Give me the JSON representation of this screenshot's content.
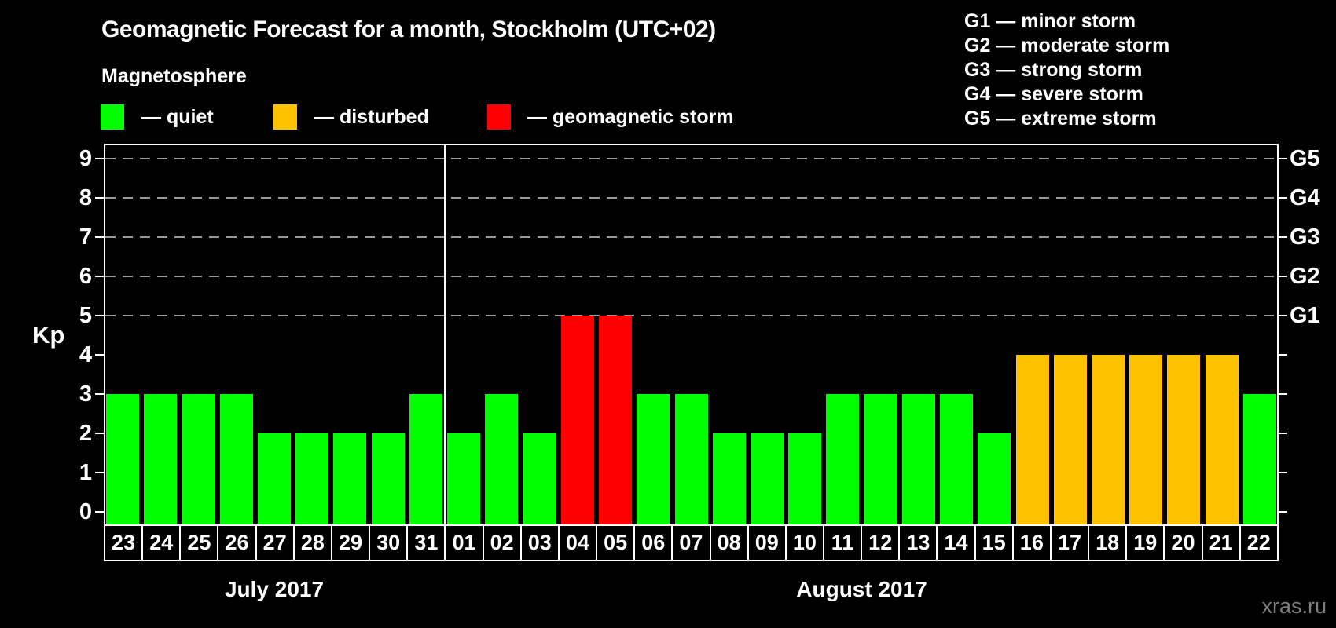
{
  "page": {
    "title": "Geomagnetic Forecast for a month, Stockholm (UTC+02)",
    "subtitle": "Magnetosphere",
    "watermark": "xras.ru"
  },
  "legend": {
    "items": [
      {
        "key": "quiet",
        "label": "— quiet",
        "color": "#00ff00"
      },
      {
        "key": "disturbed",
        "label": "— disturbed",
        "color": "#ffc200"
      },
      {
        "key": "storm",
        "label": "— geomagnetic storm",
        "color": "#ff0000"
      }
    ]
  },
  "storm_scale": {
    "items": [
      {
        "label": "G1 — minor storm"
      },
      {
        "label": "G2 — moderate storm"
      },
      {
        "label": "G3 — strong storm"
      },
      {
        "label": "G4 — severe storm"
      },
      {
        "label": "G5 — extreme storm"
      }
    ]
  },
  "chart_data": {
    "type": "bar",
    "title": "Geomagnetic Forecast for a month, Stockholm (UTC+02)",
    "ylabel": "Kp",
    "ylim": [
      0,
      9
    ],
    "y_ticks": [
      0,
      1,
      2,
      3,
      4,
      5,
      6,
      7,
      8,
      9
    ],
    "grid": "dashed horizontal gridlines only at Kp 5-9 (G-storm levels)",
    "gridlines_at": [
      5,
      6,
      7,
      8,
      9
    ],
    "right_axis_labels": [
      {
        "kp": 5,
        "label": "G1"
      },
      {
        "kp": 6,
        "label": "G2"
      },
      {
        "kp": 7,
        "label": "G3"
      },
      {
        "kp": 8,
        "label": "G4"
      },
      {
        "kp": 9,
        "label": "G5"
      }
    ],
    "status_colors": {
      "quiet": "#00ff00",
      "disturbed": "#ffc200",
      "storm": "#ff0000"
    },
    "months": [
      {
        "label": "July 2017",
        "days": 9
      },
      {
        "label": "August 2017",
        "days": 22
      }
    ],
    "bars": [
      {
        "day": "23",
        "kp": 3,
        "status": "quiet"
      },
      {
        "day": "24",
        "kp": 3,
        "status": "quiet"
      },
      {
        "day": "25",
        "kp": 3,
        "status": "quiet"
      },
      {
        "day": "26",
        "kp": 3,
        "status": "quiet"
      },
      {
        "day": "27",
        "kp": 2,
        "status": "quiet"
      },
      {
        "day": "28",
        "kp": 2,
        "status": "quiet"
      },
      {
        "day": "29",
        "kp": 2,
        "status": "quiet"
      },
      {
        "day": "30",
        "kp": 2,
        "status": "quiet"
      },
      {
        "day": "31",
        "kp": 3,
        "status": "quiet"
      },
      {
        "day": "01",
        "kp": 2,
        "status": "quiet"
      },
      {
        "day": "02",
        "kp": 3,
        "status": "quiet"
      },
      {
        "day": "03",
        "kp": 2,
        "status": "quiet"
      },
      {
        "day": "04",
        "kp": 5,
        "status": "storm"
      },
      {
        "day": "05",
        "kp": 5,
        "status": "storm"
      },
      {
        "day": "06",
        "kp": 3,
        "status": "quiet"
      },
      {
        "day": "07",
        "kp": 3,
        "status": "quiet"
      },
      {
        "day": "08",
        "kp": 2,
        "status": "quiet"
      },
      {
        "day": "09",
        "kp": 2,
        "status": "quiet"
      },
      {
        "day": "10",
        "kp": 2,
        "status": "quiet"
      },
      {
        "day": "11",
        "kp": 3,
        "status": "quiet"
      },
      {
        "day": "12",
        "kp": 3,
        "status": "quiet"
      },
      {
        "day": "13",
        "kp": 3,
        "status": "quiet"
      },
      {
        "day": "14",
        "kp": 3,
        "status": "quiet"
      },
      {
        "day": "15",
        "kp": 2,
        "status": "quiet"
      },
      {
        "day": "16",
        "kp": 4,
        "status": "disturbed"
      },
      {
        "day": "17",
        "kp": 4,
        "status": "disturbed"
      },
      {
        "day": "18",
        "kp": 4,
        "status": "disturbed"
      },
      {
        "day": "19",
        "kp": 4,
        "status": "disturbed"
      },
      {
        "day": "20",
        "kp": 4,
        "status": "disturbed"
      },
      {
        "day": "21",
        "kp": 4,
        "status": "disturbed"
      },
      {
        "day": "22",
        "kp": 3,
        "status": "quiet"
      }
    ]
  }
}
